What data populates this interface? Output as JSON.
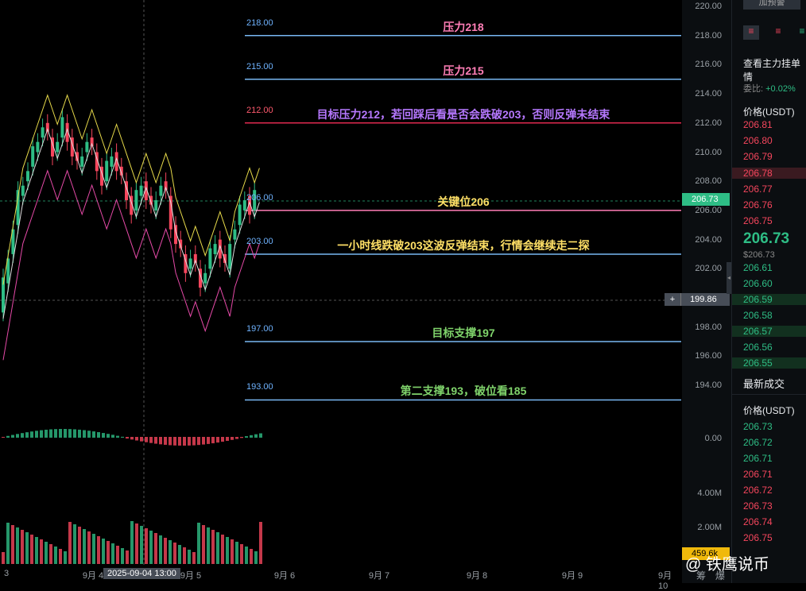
{
  "colors": {
    "up": "#2ebd85",
    "down": "#f6465d",
    "level": "#79b8f3",
    "key": "#ff7eb6",
    "target": "#e0294f"
  },
  "levels": [
    {
      "value": 218,
      "label": "218.00",
      "note": "压力218",
      "note_color": "#ff7eb6",
      "line": "#79b8f3"
    },
    {
      "value": 215,
      "label": "215.00",
      "note": "压力215",
      "note_color": "#ff7eb6",
      "line": "#79b8f3"
    },
    {
      "value": 212,
      "label": "212.00",
      "note": "目标压力212，若回踩后看是否会跌破203，否则反弹未结束",
      "note_color": "#b678ff",
      "line": "#e0294f",
      "label_color": "#ff5a6e"
    },
    {
      "value": 206,
      "label": "206.00",
      "note": "关键位206",
      "note_color": "#ffe066",
      "line": "#ff7eb6"
    },
    {
      "value": 203,
      "label": "203.00",
      "note": "一小时线跌破203这波反弹结束，行情会继续走二探",
      "note_color": "#ffe066",
      "line": "#79b8f3"
    },
    {
      "value": 197,
      "label": "197.00",
      "note": "目标支撑197",
      "note_color": "#7fd36b",
      "line": "#79b8f3"
    },
    {
      "value": 193,
      "label": "193.00",
      "note": "第二支撑193，破位看185",
      "note_color": "#7fd36b",
      "line": "#79b8f3"
    }
  ],
  "axis": {
    "ticks": [
      "220.00",
      "218.00",
      "216.00",
      "214.00",
      "212.00",
      "210.00",
      "208.00",
      "206.00",
      "204.00",
      "202.00",
      "200.00",
      "198.00",
      "196.00",
      "194.00"
    ],
    "tick_values": [
      220,
      218,
      216,
      214,
      212,
      210,
      208,
      206,
      204,
      202,
      200,
      198,
      196,
      194
    ],
    "price_tag": "206.73",
    "cross_tag": "199.86",
    "macd_tick": "0.00",
    "vol_ticks": [
      "4.00M",
      "2.00M"
    ],
    "vol_tag": "459.6k"
  },
  "xaxis": {
    "labels": [
      "3",
      "9月 4",
      "9月 5",
      "9月 6",
      "9月 7",
      "9月 8",
      "9月 9",
      "9月 10"
    ],
    "cross_time": "2025-09-04 13:00"
  },
  "panel": {
    "top_button": "加预警",
    "title": "查看主力挂单情",
    "ratio_label": "委比:",
    "ratio_value": "+0.02%",
    "price_header": "价格(USDT)",
    "asks": [
      "206.81",
      "206.80",
      "206.79",
      "206.78",
      "206.77",
      "206.76",
      "206.75"
    ],
    "last_price": "206.73",
    "last_price_usd": "$206.73",
    "bids": [
      "206.61",
      "206.60",
      "206.59",
      "206.58",
      "206.57",
      "206.56",
      "206.55"
    ],
    "trades_title": "最新成交",
    "trades_header": "价格(USDT)",
    "trades": [
      {
        "p": "206.73",
        "side": "up"
      },
      {
        "p": "206.72",
        "side": "up"
      },
      {
        "p": "206.71",
        "side": "up"
      },
      {
        "p": "206.71",
        "side": "down"
      },
      {
        "p": "206.72",
        "side": "down"
      },
      {
        "p": "206.73",
        "side": "down"
      },
      {
        "p": "206.74",
        "side": "down"
      },
      {
        "p": "206.75",
        "side": "down"
      }
    ]
  },
  "watermark": "@ 铁鹰说币",
  "footer_tabs": [
    "筹",
    "爆"
  ]
}
